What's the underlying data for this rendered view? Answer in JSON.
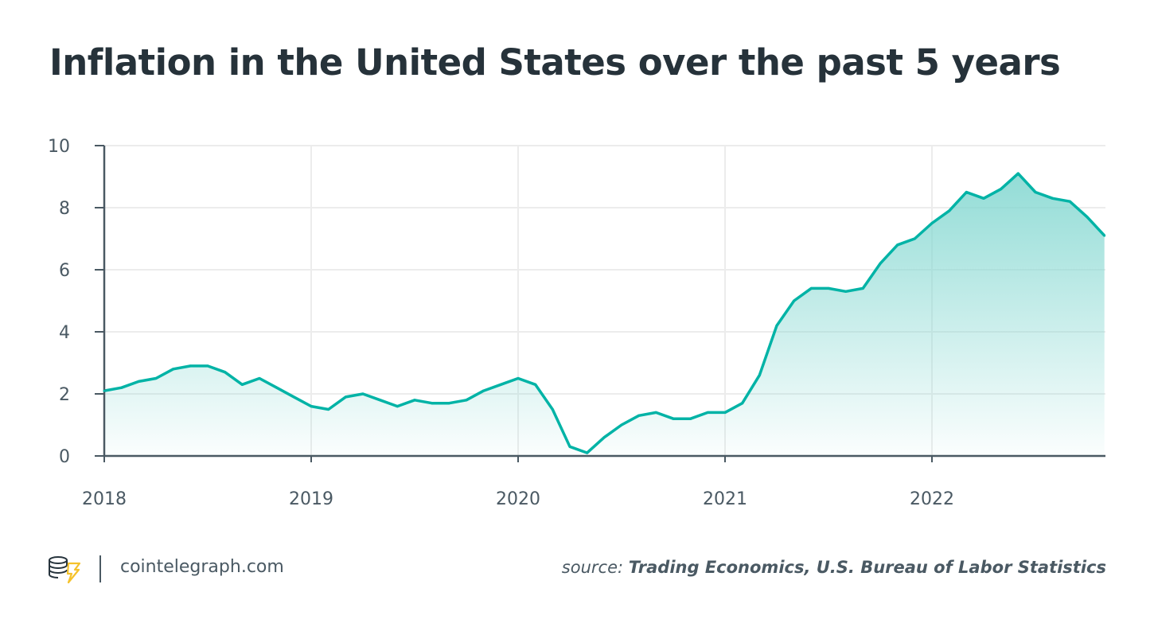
{
  "title": "Inflation in the United States over the past 5 years",
  "footer": {
    "site": "cointelegraph.com",
    "source_prefix": "source:",
    "source_names": "Trading Economics, U.S. Bureau of Labor Statistics"
  },
  "colors": {
    "line": "#00b3a6",
    "fill": "#7fd6cf",
    "axis": "#4a5963",
    "grid": "#ececec",
    "logo": "#f5c22b"
  },
  "chart_data": {
    "type": "area",
    "title": "Inflation in the United States over the past 5 years",
    "xlabel": "",
    "ylabel": "",
    "ylim": [
      0,
      10
    ],
    "yticks": [
      "0",
      "2",
      "4",
      "6",
      "8",
      "10"
    ],
    "xticks": [
      "2018",
      "2019",
      "2020",
      "2021",
      "2022"
    ],
    "grid": true,
    "x_start": "2018-01",
    "x_end": "2022-11",
    "x": [
      "2018-01",
      "2018-02",
      "2018-03",
      "2018-04",
      "2018-05",
      "2018-06",
      "2018-07",
      "2018-08",
      "2018-09",
      "2018-10",
      "2018-11",
      "2018-12",
      "2019-01",
      "2019-02",
      "2019-03",
      "2019-04",
      "2019-05",
      "2019-06",
      "2019-07",
      "2019-08",
      "2019-09",
      "2019-10",
      "2019-11",
      "2019-12",
      "2020-01",
      "2020-02",
      "2020-03",
      "2020-04",
      "2020-05",
      "2020-06",
      "2020-07",
      "2020-08",
      "2020-09",
      "2020-10",
      "2020-11",
      "2020-12",
      "2021-01",
      "2021-02",
      "2021-03",
      "2021-04",
      "2021-05",
      "2021-06",
      "2021-07",
      "2021-08",
      "2021-09",
      "2021-10",
      "2021-11",
      "2021-12",
      "2022-01",
      "2022-02",
      "2022-03",
      "2022-04",
      "2022-05",
      "2022-06",
      "2022-07",
      "2022-08",
      "2022-09",
      "2022-10",
      "2022-11"
    ],
    "values": [
      2.1,
      2.2,
      2.4,
      2.5,
      2.8,
      2.9,
      2.9,
      2.7,
      2.3,
      2.5,
      2.2,
      1.9,
      1.6,
      1.5,
      1.9,
      2.0,
      1.8,
      1.6,
      1.8,
      1.7,
      1.7,
      1.8,
      2.1,
      2.3,
      2.5,
      2.3,
      1.5,
      0.3,
      0.1,
      0.6,
      1.0,
      1.3,
      1.4,
      1.2,
      1.2,
      1.4,
      1.4,
      1.7,
      2.6,
      4.2,
      5.0,
      5.4,
      5.4,
      5.3,
      5.4,
      6.2,
      6.8,
      7.0,
      7.5,
      7.9,
      8.5,
      8.3,
      8.6,
      9.1,
      8.5,
      8.3,
      8.2,
      7.7,
      7.1
    ]
  }
}
